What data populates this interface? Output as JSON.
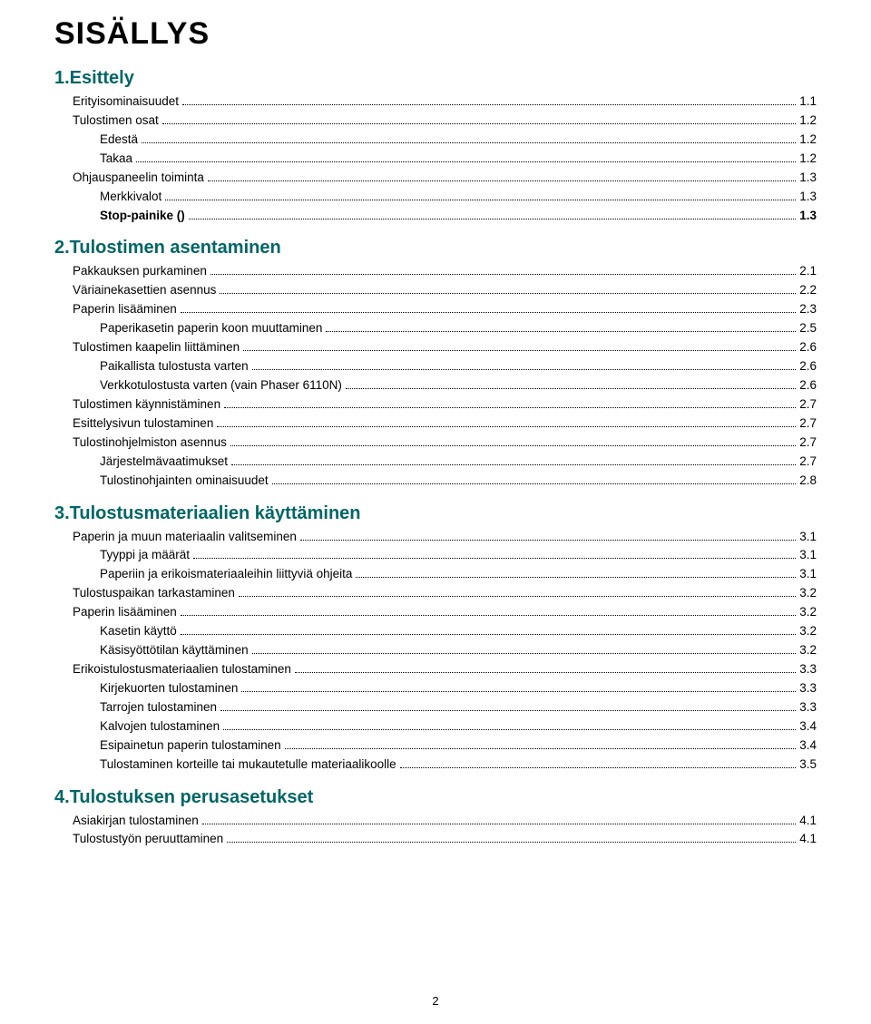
{
  "title": "SISÄLLYS",
  "footer_page": "2",
  "colors": {
    "heading_color": "#006666",
    "text_color": "#000000",
    "background": "#ffffff"
  },
  "typography": {
    "title_fontsize_pt": 26,
    "heading_fontsize_pt": 15,
    "body_fontsize_pt": 10,
    "font_family": "Verdana"
  },
  "sections": [
    {
      "heading": "1.Esittely",
      "entries": [
        {
          "label": "Erityisominaisuudet",
          "page": "1.1",
          "level": 0,
          "bold": false
        },
        {
          "label": "Tulostimen osat",
          "page": "1.2",
          "level": 0,
          "bold": false
        },
        {
          "label": "Edestä",
          "page": "1.2",
          "level": 1,
          "bold": false
        },
        {
          "label": "Takaa",
          "page": "1.2",
          "level": 1,
          "bold": false
        },
        {
          "label": "Ohjauspaneelin toiminta",
          "page": "1.3",
          "level": 0,
          "bold": false
        },
        {
          "label": "Merkkivalot",
          "page": "1.3",
          "level": 1,
          "bold": false
        },
        {
          "label": "Stop-painike ()",
          "page": "1.3",
          "level": 1,
          "bold": true
        }
      ]
    },
    {
      "heading": "2.Tulostimen asentaminen",
      "entries": [
        {
          "label": "Pakkauksen purkaminen",
          "page": "2.1",
          "level": 0,
          "bold": false
        },
        {
          "label": "Väriainekasettien asennus",
          "page": "2.2",
          "level": 0,
          "bold": false
        },
        {
          "label": "Paperin lisääminen",
          "page": "2.3",
          "level": 0,
          "bold": false
        },
        {
          "label": "Paperikasetin paperin koon muuttaminen",
          "page": "2.5",
          "level": 1,
          "bold": false
        },
        {
          "label": "Tulostimen kaapelin liittäminen",
          "page": "2.6",
          "level": 0,
          "bold": false
        },
        {
          "label": "Paikallista tulostusta varten",
          "page": "2.6",
          "level": 1,
          "bold": false
        },
        {
          "label": "Verkkotulostusta varten (vain Phaser 6110N)",
          "page": "2.6",
          "level": 1,
          "bold": false
        },
        {
          "label": "Tulostimen käynnistäminen",
          "page": "2.7",
          "level": 0,
          "bold": false
        },
        {
          "label": "Esittelysivun tulostaminen",
          "page": "2.7",
          "level": 0,
          "bold": false
        },
        {
          "label": "Tulostinohjelmiston asennus",
          "page": "2.7",
          "level": 0,
          "bold": false
        },
        {
          "label": "Järjestelmävaatimukset",
          "page": "2.7",
          "level": 1,
          "bold": false
        },
        {
          "label": "Tulostinohjainten ominaisuudet",
          "page": "2.8",
          "level": 1,
          "bold": false
        }
      ]
    },
    {
      "heading": "3.Tulostusmateriaalien käyttäminen",
      "entries": [
        {
          "label": "Paperin ja muun materiaalin valitseminen",
          "page": "3.1",
          "level": 0,
          "bold": false
        },
        {
          "label": "Tyyppi ja määrät",
          "page": "3.1",
          "level": 1,
          "bold": false
        },
        {
          "label": "Paperiin ja erikoismateriaaleihin liittyviä ohjeita",
          "page": "3.1",
          "level": 1,
          "bold": false
        },
        {
          "label": "Tulostuspaikan tarkastaminen",
          "page": "3.2",
          "level": 0,
          "bold": false
        },
        {
          "label": "Paperin lisääminen",
          "page": "3.2",
          "level": 0,
          "bold": false
        },
        {
          "label": "Kasetin käyttö",
          "page": "3.2",
          "level": 1,
          "bold": false
        },
        {
          "label": "Käsisyöttötilan käyttäminen",
          "page": "3.2",
          "level": 1,
          "bold": false
        },
        {
          "label": "Erikoistulostusmateriaalien tulostaminen",
          "page": "3.3",
          "level": 0,
          "bold": false
        },
        {
          "label": "Kirjekuorten tulostaminen",
          "page": "3.3",
          "level": 1,
          "bold": false
        },
        {
          "label": "Tarrojen tulostaminen",
          "page": "3.3",
          "level": 1,
          "bold": false
        },
        {
          "label": "Kalvojen tulostaminen",
          "page": "3.4",
          "level": 1,
          "bold": false
        },
        {
          "label": "Esipainetun paperin tulostaminen",
          "page": "3.4",
          "level": 1,
          "bold": false
        },
        {
          "label": "Tulostaminen korteille tai mukautetulle materiaalikoolle",
          "page": "3.5",
          "level": 1,
          "bold": false
        }
      ]
    },
    {
      "heading": "4.Tulostuksen perusasetukset",
      "entries": [
        {
          "label": "Asiakirjan tulostaminen",
          "page": "4.1",
          "level": 0,
          "bold": false
        },
        {
          "label": "Tulostustyön peruuttaminen",
          "page": "4.1",
          "level": 0,
          "bold": false
        }
      ]
    }
  ]
}
